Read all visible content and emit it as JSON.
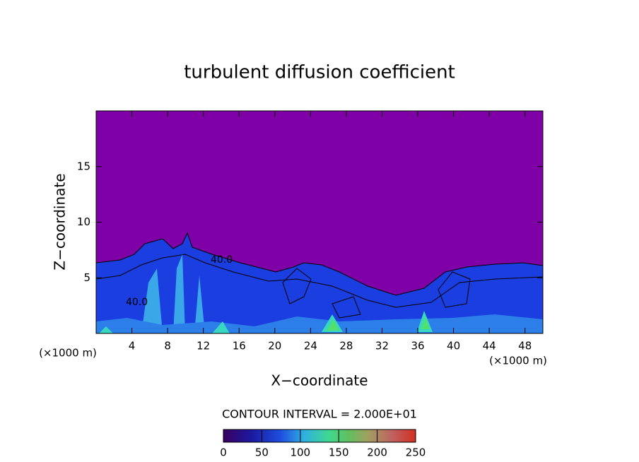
{
  "chart_data": {
    "type": "contour",
    "title": "turbulent diffusion coefficient",
    "x_label": "X−coordinate",
    "y_label": "Z−coordinate",
    "x_unit_labels": [
      "(×1000 m)",
      "(×1000 m)"
    ],
    "xlim": [
      0,
      50
    ],
    "xticks": [
      4,
      8,
      12,
      16,
      20,
      24,
      28,
      32,
      36,
      40,
      44,
      48
    ],
    "ylim": [
      0,
      20
    ],
    "yticks": [
      5,
      10,
      15
    ],
    "contour_interval_label": "CONTOUR INTERVAL = 2.000E+01",
    "contour_labels": [
      "40.0",
      "40.0"
    ],
    "colorbar_lim": [
      0,
      250
    ],
    "colorbar_ticks": [
      0,
      50,
      100,
      150,
      200,
      250
    ]
  }
}
